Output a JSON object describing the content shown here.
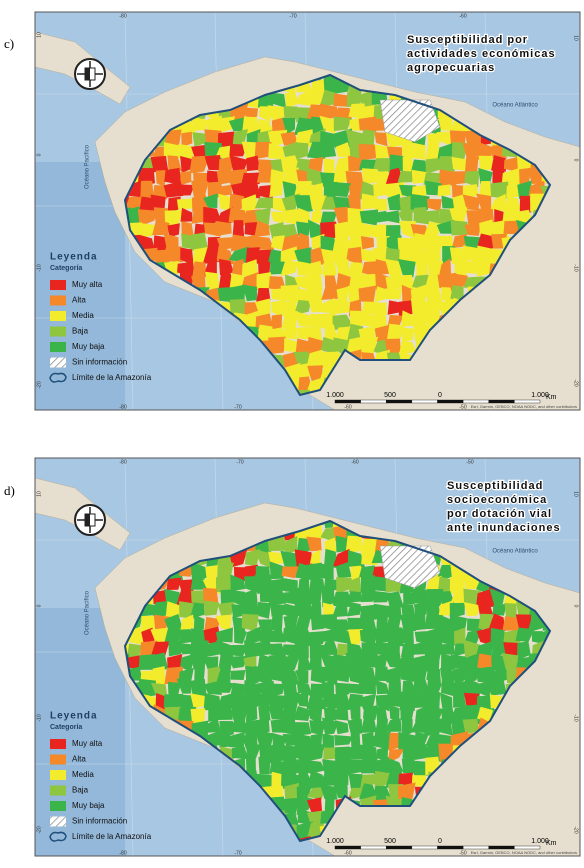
{
  "panels": [
    {
      "label": "c)",
      "title": [
        "Susceptibilidad por",
        "actividades económicas",
        "agropecuarias"
      ],
      "ticks": {
        "top": [
          -80,
          -70,
          -60
        ],
        "bottom": [
          -80,
          -70,
          -60,
          -50
        ],
        "left": [
          10,
          0,
          -10,
          -20
        ],
        "right": [
          10,
          0,
          -10,
          -20
        ]
      },
      "oceans": [
        "Océano Pacífico",
        "Océano Atlántico"
      ],
      "legend": {
        "title": "Leyenda",
        "subtitle": "Categoría",
        "items": [
          {
            "label": "Muy alta",
            "color": "#e8261f"
          },
          {
            "label": "Alta",
            "color": "#f5892a"
          },
          {
            "label": "Media",
            "color": "#f2ec2c"
          },
          {
            "label": "Baja",
            "color": "#8fc640"
          },
          {
            "label": "Muy baja",
            "color": "#3bb54a"
          },
          {
            "label": "Sin información"
          },
          {
            "label": "Límite de la Amazonía"
          }
        ]
      },
      "scale": [
        "1.000",
        "500",
        "0",
        "1.000"
      ],
      "scale_unit": "Km",
      "credit": "Esri, Garmin, GEBCO, NOAA NGDC, and other contributors"
    },
    {
      "label": "d)",
      "title": [
        "Susceptibilidad",
        "socioeconómica",
        "por dotación vial",
        "ante inundaciones"
      ],
      "ticks": {
        "top": [
          -80,
          -70,
          -60,
          -50
        ],
        "bottom": [
          -80,
          -70,
          -60,
          -50
        ],
        "left": [
          10,
          0,
          -10,
          -20
        ],
        "right": [
          10,
          0,
          -10,
          -20
        ]
      },
      "oceans": [
        "Océano Pacífico",
        "Océano Atlántico"
      ],
      "legend": {
        "title": "Leyenda",
        "subtitle": "Categoría",
        "items": [
          {
            "label": "Muy alta",
            "color": "#e8261f"
          },
          {
            "label": "Alta",
            "color": "#f5892a"
          },
          {
            "label": "Media",
            "color": "#f2ec2c"
          },
          {
            "label": "Baja",
            "color": "#8fc640"
          },
          {
            "label": "Muy baja",
            "color": "#3bb54a"
          },
          {
            "label": "Sin información"
          },
          {
            "label": "Límite de la Amazonía"
          }
        ]
      },
      "scale": [
        "1.000",
        "500",
        "0",
        "1.000"
      ],
      "scale_unit": "Km",
      "credit": "Esri, Garmin, GEBCO, NOAA NGDC, and other contributors"
    }
  ]
}
